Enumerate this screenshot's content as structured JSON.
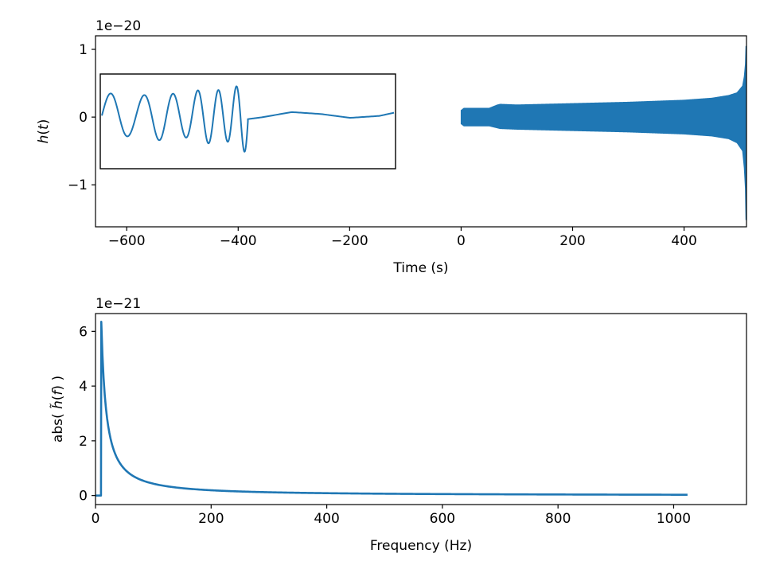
{
  "chart_data": [
    {
      "type": "line",
      "xlabel": "Time (s)",
      "ylabel_parts": [
        "h",
        "(",
        "t",
        ")"
      ],
      "offset_text": "1e−20",
      "xlim": [
        -656,
        512
      ],
      "ylim": [
        -1.62,
        1.2
      ],
      "xticks": [
        -600,
        -400,
        -200,
        0,
        200,
        400
      ],
      "xtick_labels": [
        "−600",
        "−400",
        "−200",
        "0",
        "200",
        "400"
      ],
      "yticks": [
        -1,
        0,
        1
      ],
      "ytick_labels": [
        "−1",
        "0",
        "1"
      ],
      "grid": false,
      "color": "#1f77b4",
      "series": [
        {
          "envelope": {
            "t": [
              0,
              5,
              50,
              65,
              70,
              100,
              200,
              300,
              400,
              450,
              480,
              495,
              505,
              508,
              510,
              511,
              512
            ],
            "upper": [
              0.1,
              0.13,
              0.13,
              0.18,
              0.19,
              0.18,
              0.2,
              0.22,
              0.25,
              0.28,
              0.32,
              0.36,
              0.46,
              0.6,
              0.78,
              1.05,
              0.2
            ],
            "lower": [
              -0.1,
              -0.13,
              -0.13,
              -0.16,
              -0.17,
              -0.18,
              -0.2,
              -0.22,
              -0.25,
              -0.28,
              -0.32,
              -0.38,
              -0.5,
              -0.75,
              -1.05,
              -1.52,
              -0.2
            ]
          }
        }
      ],
      "inset": {
        "xlim": [
          0,
          1
        ],
        "ylim": [
          -0.8,
          0.63
        ],
        "chirp": {
          "t": [
            0.0,
            0.1,
            0.2,
            0.3,
            0.4,
            0.45,
            0.5
          ],
          "amp": [
            0.35,
            0.36,
            0.38,
            0.4,
            0.45,
            0.5,
            0.6
          ]
        },
        "ringdown": {
          "t": [
            0.5,
            0.55,
            0.65,
            0.75,
            0.85,
            0.95,
            1.0
          ],
          "h": [
            -0.05,
            -0.02,
            0.06,
            0.03,
            -0.03,
            0.0,
            0.05
          ]
        }
      }
    },
    {
      "type": "line",
      "xlabel": "Frequency (Hz)",
      "ylabel_parts": [
        "abs( ",
        "h̃",
        "(",
        "f",
        ") )"
      ],
      "offset_text": "1e−21",
      "xlim": [
        0,
        1126
      ],
      "ylim": [
        -0.33,
        6.65
      ],
      "xticks": [
        0,
        200,
        400,
        600,
        800,
        1000
      ],
      "xtick_labels": [
        "0",
        "200",
        "400",
        "600",
        "800",
        "1000"
      ],
      "yticks": [
        0,
        2,
        4,
        6
      ],
      "ytick_labels": [
        "0",
        "2",
        "4",
        "6"
      ],
      "grid": false,
      "color": "#1f77b4",
      "series": [
        {
          "f_start": 0,
          "f_cut": 9.5,
          "f_peak": 10,
          "peak": 6.35,
          "f_end": 1024,
          "power": 1.1667
        }
      ]
    }
  ]
}
